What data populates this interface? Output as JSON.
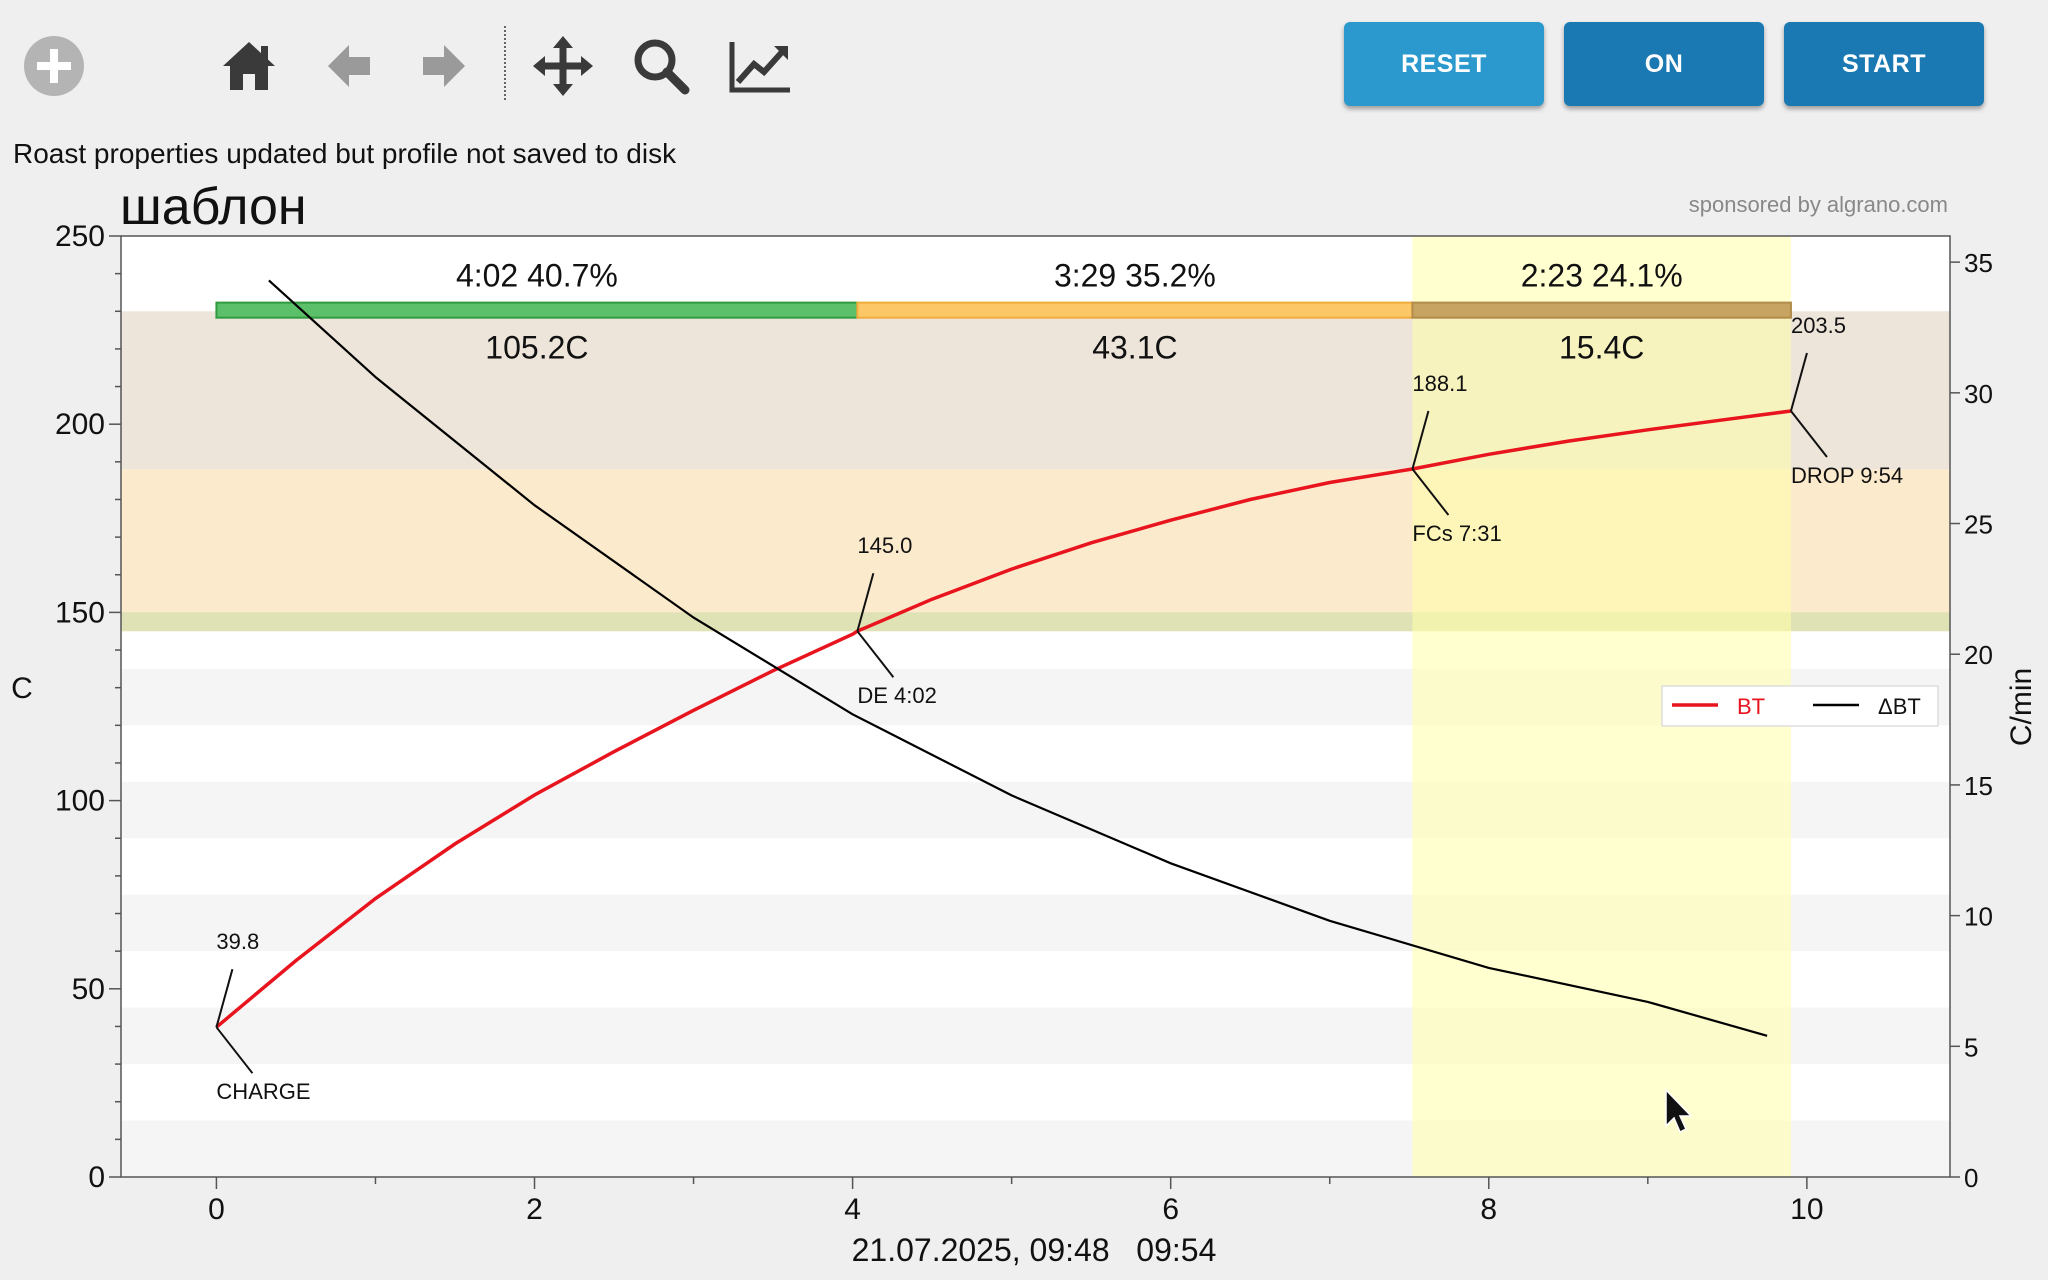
{
  "toolbar": {
    "icons": [
      "plus-circle-icon",
      "home-icon",
      "back-arrow-icon",
      "forward-arrow-icon",
      "pan-arrows-icon",
      "zoom-magnifier-icon",
      "chart-line-icon"
    ],
    "reset_label": "RESET",
    "on_label": "ON",
    "start_label": "START",
    "colors": {
      "reset": "#2b99cd",
      "on": "#1a78b2",
      "start": "#1a78b2"
    }
  },
  "status": {
    "message": "Roast properties updated but profile not saved to disk"
  },
  "chart_data": {
    "type": "line",
    "title": "шаблон",
    "sponsor": "sponsored by algrano.com",
    "xlabel": "21.07.2025, 09:48   09:54",
    "ylabel": "C",
    "y2label": "C/min",
    "xlim": [
      -0.6,
      10.9
    ],
    "ylim": [
      0,
      250
    ],
    "y2lim": [
      0,
      36
    ],
    "x_ticks": [
      "0",
      "2",
      "4",
      "6",
      "8",
      "10"
    ],
    "y_ticks": [
      "0",
      "50",
      "100",
      "150",
      "200",
      "250"
    ],
    "y2_ticks": [
      "0",
      "5",
      "10",
      "15",
      "20",
      "25",
      "30",
      "35"
    ],
    "series": [
      {
        "name": "BT",
        "color": "#e8141e",
        "x": [
          0,
          0.5,
          1,
          1.5,
          2,
          2.5,
          3,
          3.5,
          4,
          4.03,
          4.5,
          5,
          5.5,
          6,
          6.5,
          7,
          7.52,
          8,
          8.5,
          9,
          9.5,
          9.9
        ],
        "y": [
          39.8,
          57.5,
          74,
          88.5,
          101.5,
          113,
          124,
          134.5,
          144.2,
          145.0,
          153.5,
          161.5,
          168.5,
          174.5,
          180,
          184.5,
          188.1,
          192,
          195.5,
          198.5,
          201.3,
          203.5
        ]
      },
      {
        "name": "ΔBT",
        "color": "#000000",
        "x": [
          0.33,
          1,
          2,
          3,
          4,
          5,
          6,
          7,
          8,
          9,
          9.75
        ],
        "y": [
          34.3,
          30.6,
          25.7,
          21.4,
          17.7,
          14.6,
          12.0,
          9.8,
          8.0,
          6.7,
          5.4
        ]
      }
    ],
    "events": [
      {
        "x": 0,
        "y": 39.8,
        "value_label": "39.8",
        "event_label": "CHARGE"
      },
      {
        "x": 4.03,
        "y": 145.0,
        "value_label": "145.0",
        "event_label": "DE 4:02"
      },
      {
        "x": 7.52,
        "y": 188.1,
        "value_label": "188.1",
        "event_label": "FCs 7:31"
      },
      {
        "x": 9.9,
        "y": 203.5,
        "value_label": "203.5",
        "event_label": "DROP 9:54"
      }
    ],
    "phases": [
      {
        "start": 0,
        "end": 4.03,
        "time": "4:02",
        "percent": "40.7%",
        "delta": "105.2C",
        "color": "#5cbf6a",
        "border": "#2f9a3e"
      },
      {
        "start": 4.03,
        "end": 7.52,
        "time": "3:29",
        "percent": "35.2%",
        "delta": "43.1C",
        "color": "#fcc766",
        "border": "#f0ad3a"
      },
      {
        "start": 7.52,
        "end": 9.9,
        "time": "2:23",
        "percent": "24.1%",
        "delta": "15.4C",
        "color": "#c8a462",
        "border": "#b28c4a"
      }
    ],
    "bands": [
      {
        "from": 188,
        "to": 230,
        "color": "#eadfd3"
      },
      {
        "from": 145,
        "to": 188,
        "color": "#fbe6c4"
      },
      {
        "from": 145,
        "to": 150,
        "color": "#d9e0b0"
      }
    ],
    "dev_highlight": {
      "from": 7.52,
      "to": 9.9,
      "color": "#ffffa8"
    },
    "legend": {
      "placement": "right",
      "entries": [
        "BT",
        "ΔBT"
      ]
    },
    "grid": false
  }
}
